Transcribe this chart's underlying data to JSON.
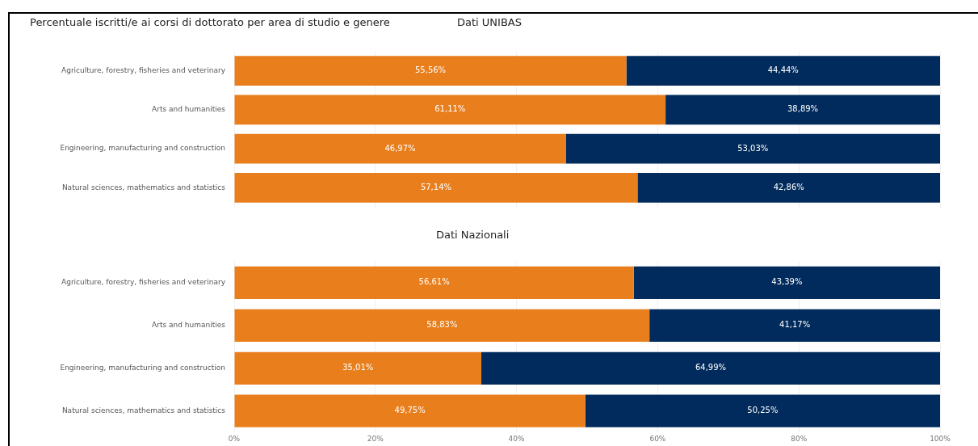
{
  "chart_data": [
    {
      "type": "bar",
      "orientation": "horizontal",
      "stacked": true,
      "title": "Percentuale iscritti/e ai corsi di dottorato per area di studio e genere",
      "subtitle": "Dati UNIBAS",
      "categories": [
        "Agriculture, forestry, fisheries and veterinary",
        "Arts and humanities",
        "Engineering, manufacturing and construction",
        "Natural sciences, mathematics and statistics"
      ],
      "series": [
        {
          "color": "#e97e1c",
          "values": [
            55.56,
            61.11,
            46.97,
            57.14
          ],
          "value_labels": [
            "55,56%",
            "61,11%",
            "46,97%",
            "57,14%"
          ]
        },
        {
          "color": "#002b5c",
          "values": [
            44.44,
            38.89,
            53.03,
            42.86
          ],
          "value_labels": [
            "44,44%",
            "38,89%",
            "53,03%",
            "42,86%"
          ]
        }
      ],
      "xlim": [
        0,
        100
      ],
      "xticks": [
        0,
        20,
        40,
        60,
        80,
        100
      ],
      "tick_labels": "y",
      "grid": "x",
      "legend": false
    },
    {
      "type": "bar",
      "orientation": "horizontal",
      "stacked": true,
      "title": "Dati Nazionali",
      "categories": [
        "Agriculture, forestry, fisheries and veterinary",
        "Arts and humanities",
        "Engineering, manufacturing and construction",
        "Natural sciences, mathematics and statistics"
      ],
      "series": [
        {
          "color": "#e97e1c",
          "values": [
            56.61,
            58.83,
            35.01,
            49.75
          ],
          "value_labels": [
            "56,61%",
            "58,83%",
            "35,01%",
            "49,75%"
          ]
        },
        {
          "color": "#002b5c",
          "values": [
            43.39,
            41.17,
            64.99,
            50.25
          ],
          "value_labels": [
            "43,39%",
            "41,17%",
            "64,99%",
            "50,25%"
          ]
        }
      ],
      "xlim": [
        0,
        100
      ],
      "xticks": [
        {
          "value": 0,
          "label": "0%"
        },
        {
          "value": 20,
          "label": "20%"
        },
        {
          "value": 40,
          "label": "40%"
        },
        {
          "value": 60,
          "label": "60%"
        },
        {
          "value": 80,
          "label": "80%"
        },
        {
          "value": 100,
          "label": "100%"
        }
      ],
      "grid": "x",
      "legend": false
    }
  ]
}
